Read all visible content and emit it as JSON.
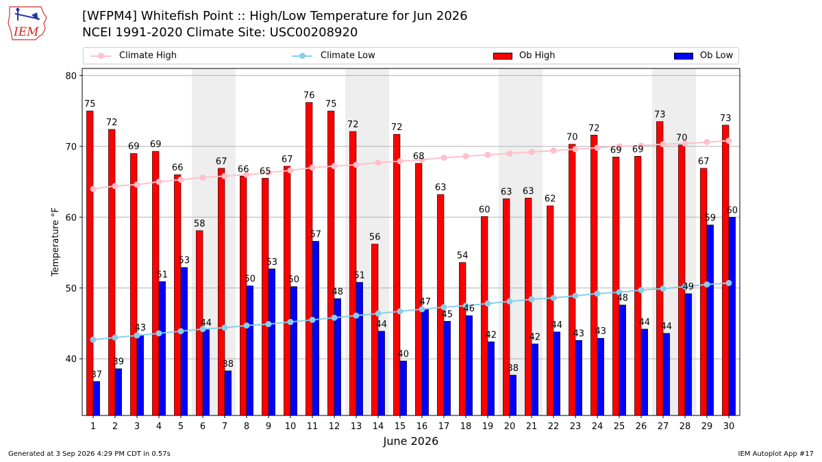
{
  "header": {
    "title_line1": "[WFPM4] Whitefish Point :: High/Low Temperature for Jun 2026",
    "title_line2": "NCEI 1991-2020 Climate Site: USC00208920",
    "logo_text": "IEM"
  },
  "footer": {
    "generated": "Generated at 3 Sep 2026 4:29 PM CDT in 0.57s",
    "app": "IEM Autoplot App #17"
  },
  "legend": {
    "items": [
      {
        "label": "Climate High",
        "color": "#ffc0cb",
        "kind": "line"
      },
      {
        "label": "Climate Low",
        "color": "#87ceeb",
        "kind": "line"
      },
      {
        "label": "Ob High",
        "color": "#ff0000",
        "kind": "bar"
      },
      {
        "label": "Ob Low",
        "color": "#0000ff",
        "kind": "bar"
      }
    ]
  },
  "chart_data": {
    "type": "bar",
    "xlabel": "June 2026",
    "ylabel": "Temperature °F",
    "ylim": [
      32,
      81
    ],
    "yticks": [
      40,
      50,
      60,
      70,
      80
    ],
    "grid": true,
    "legend_position": "top",
    "x": [
      1,
      2,
      3,
      4,
      5,
      6,
      7,
      8,
      9,
      10,
      11,
      12,
      13,
      14,
      15,
      16,
      17,
      18,
      19,
      20,
      21,
      22,
      23,
      24,
      25,
      26,
      27,
      28,
      29,
      30
    ],
    "weekend_shaded_days": [
      6,
      7,
      13,
      14,
      20,
      21,
      27,
      28
    ],
    "series": [
      {
        "name": "Ob High",
        "kind": "bar",
        "color": "#ff0000",
        "values": [
          75,
          72,
          69,
          69,
          66,
          58,
          67,
          66,
          65,
          67,
          76,
          75,
          72,
          56,
          72,
          68,
          63,
          54,
          60,
          63,
          63,
          62,
          70,
          72,
          69,
          69,
          73,
          70,
          67,
          73
        ],
        "plot_values": [
          75,
          72.4,
          69,
          69.3,
          66,
          58.1,
          66.9,
          65.8,
          65.5,
          67.2,
          76.2,
          75,
          72.1,
          56.2,
          71.7,
          67.6,
          63.2,
          53.6,
          60.1,
          62.6,
          62.7,
          61.6,
          70.3,
          71.6,
          68.5,
          68.6,
          73.5,
          70.2,
          66.9,
          73
        ]
      },
      {
        "name": "Ob Low",
        "kind": "bar",
        "color": "#0000ff",
        "values": [
          37,
          39,
          43,
          51,
          53,
          44,
          38,
          50,
          53,
          50,
          57,
          48,
          51,
          44,
          40,
          47,
          45,
          46,
          42,
          38,
          42,
          44,
          43,
          43,
          48,
          44,
          44,
          49,
          59,
          60
        ],
        "plot_values": [
          36.8,
          38.6,
          43.4,
          50.9,
          52.9,
          44.1,
          38.3,
          50.3,
          52.7,
          50.2,
          56.6,
          48.5,
          50.8,
          43.9,
          39.7,
          47.1,
          45.3,
          46.1,
          42.4,
          37.7,
          42.1,
          43.8,
          42.6,
          42.9,
          47.6,
          44.2,
          43.6,
          49.2,
          58.9,
          60
        ]
      },
      {
        "name": "Climate High",
        "kind": "line",
        "color": "#ffc0cb",
        "values": [
          64.0,
          64.4,
          64.6,
          65.0,
          65.3,
          65.6,
          65.8,
          66.0,
          66.3,
          66.6,
          67.0,
          67.2,
          67.4,
          67.7,
          67.9,
          68.1,
          68.4,
          68.6,
          68.8,
          69.0,
          69.2,
          69.4,
          69.6,
          69.8,
          70.0,
          70.1,
          70.3,
          70.4,
          70.6,
          70.8
        ]
      },
      {
        "name": "Climate Low",
        "kind": "line",
        "color": "#87ceeb",
        "values": [
          42.7,
          43.0,
          43.3,
          43.6,
          43.9,
          44.2,
          44.4,
          44.7,
          44.9,
          45.2,
          45.5,
          45.8,
          46.1,
          46.4,
          46.7,
          47.0,
          47.3,
          47.5,
          47.8,
          48.1,
          48.4,
          48.6,
          48.9,
          49.2,
          49.4,
          49.7,
          49.9,
          50.2,
          50.5,
          50.7
        ]
      }
    ]
  }
}
